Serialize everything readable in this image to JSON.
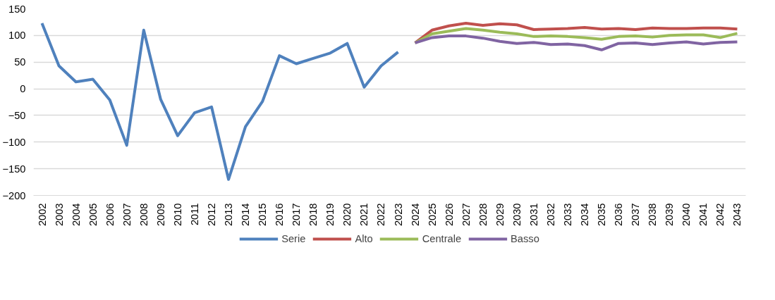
{
  "chart_data": {
    "type": "line",
    "categories": [
      "2002",
      "2003",
      "2004",
      "2005",
      "2006",
      "2007",
      "2008",
      "2009",
      "2010",
      "2011",
      "2012",
      "2013",
      "2014",
      "2015",
      "2016",
      "2017",
      "2018",
      "2019",
      "2020",
      "2021",
      "2022",
      "2023",
      "2024",
      "2025",
      "2026",
      "2027",
      "2028",
      "2029",
      "2030",
      "2031",
      "2032",
      "2033",
      "2034",
      "2035",
      "2036",
      "2037",
      "2038",
      "2039",
      "2040",
      "2041",
      "2042",
      "2043"
    ],
    "series": [
      {
        "name": "Serie",
        "color": "#4f81bd",
        "values": [
          123,
          43,
          13,
          18,
          -21,
          -106,
          110,
          -20,
          -88,
          -45,
          -34,
          -170,
          -71,
          -24,
          62,
          47,
          57,
          67,
          85,
          3,
          43,
          69,
          null,
          null,
          null,
          null,
          null,
          null,
          null,
          null,
          null,
          null,
          null,
          null,
          null,
          null,
          null,
          null,
          null,
          null,
          null,
          null
        ]
      },
      {
        "name": "Alto",
        "color": "#c0504d",
        "values": [
          null,
          null,
          null,
          null,
          null,
          null,
          null,
          null,
          null,
          null,
          null,
          null,
          null,
          null,
          null,
          null,
          null,
          null,
          null,
          null,
          null,
          null,
          86,
          110,
          118,
          123,
          119,
          122,
          120,
          111,
          112,
          113,
          115,
          112,
          113,
          111,
          114,
          113,
          113,
          114,
          114,
          112
        ]
      },
      {
        "name": "Centrale",
        "color": "#9bbb59",
        "values": [
          null,
          null,
          null,
          null,
          null,
          null,
          null,
          null,
          null,
          null,
          null,
          null,
          null,
          null,
          null,
          null,
          null,
          null,
          null,
          null,
          null,
          null,
          86,
          103,
          108,
          113,
          110,
          106,
          103,
          98,
          99,
          98,
          96,
          93,
          98,
          99,
          97,
          100,
          101,
          101,
          96,
          104
        ]
      },
      {
        "name": "Basso",
        "color": "#8064a2",
        "values": [
          null,
          null,
          null,
          null,
          null,
          null,
          null,
          null,
          null,
          null,
          null,
          null,
          null,
          null,
          null,
          null,
          null,
          null,
          null,
          null,
          null,
          null,
          86,
          96,
          99,
          99,
          95,
          89,
          85,
          87,
          83,
          84,
          81,
          73,
          85,
          86,
          83,
          86,
          88,
          84,
          87,
          88
        ]
      }
    ],
    "ylim": [
      -200,
      150
    ],
    "yticks": [
      -200,
      -150,
      -100,
      -50,
      0,
      50,
      100,
      150
    ],
    "grid": "y",
    "legend": "bottom",
    "marker": "none",
    "line_style": "solid"
  }
}
